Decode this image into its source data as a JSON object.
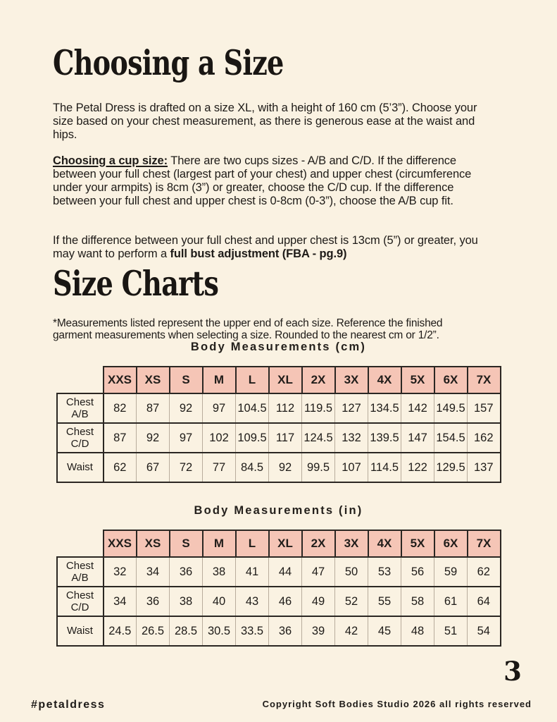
{
  "page": {
    "background_color": "#faf2e2",
    "accent_pink": "#f5c5b6",
    "border_color": "#2b2723",
    "page_number": "3"
  },
  "headings": {
    "main": "Choosing a Size",
    "charts": "Size Charts"
  },
  "intro_paragraph": "The Petal Dress is drafted on a size XL, with a height of 160 cm (5’3”). Choose your size based on your chest measurement, as there is generous ease at the waist and hips.",
  "cup_paragraph": {
    "label": "Choosing a cup size:",
    "text": " There are two cups sizes - A/B and C/D. If the difference between your full chest (largest part of your chest) and upper chest (circumference under your armpits) is 8cm (3”) or greater, choose the C/D cup. If the difference between your full chest and upper chest is 0-8cm (0-3”), choose the A/B cup fit."
  },
  "fba_paragraph": {
    "text": "If the difference between your full chest and upper chest is 13cm (5”) or greater, you may want to perform a ",
    "bold": "full bust adjustment (FBA - pg.9)"
  },
  "charts_note": "*Measurements listed represent the upper end of each size. Reference the finished garment measurements when selecting a size. Rounded to the nearest cm or 1/2”.",
  "size_charts": {
    "sizes": [
      "XXS",
      "XS",
      "S",
      "M",
      "L",
      "XL",
      "2X",
      "3X",
      "4X",
      "5X",
      "6X",
      "7X"
    ],
    "cm": {
      "title": "Body Measurements (cm)",
      "rows": [
        {
          "label": "Chest A/B",
          "values": [
            "82",
            "87",
            "92",
            "97",
            "104.5",
            "112",
            "119.5",
            "127",
            "134.5",
            "142",
            "149.5",
            "157"
          ]
        },
        {
          "label": "Chest C/D",
          "values": [
            "87",
            "92",
            "97",
            "102",
            "109.5",
            "117",
            "124.5",
            "132",
            "139.5",
            "147",
            "154.5",
            "162"
          ]
        },
        {
          "label": "Waist",
          "values": [
            "62",
            "67",
            "72",
            "77",
            "84.5",
            "92",
            "99.5",
            "107",
            "114.5",
            "122",
            "129.5",
            "137"
          ]
        }
      ]
    },
    "in": {
      "title": "Body Measurements (in)",
      "rows": [
        {
          "label": "Chest A/B",
          "values": [
            "32",
            "34",
            "36",
            "38",
            "41",
            "44",
            "47",
            "50",
            "53",
            "56",
            "59",
            "62"
          ]
        },
        {
          "label": "Chest C/D",
          "values": [
            "34",
            "36",
            "38",
            "40",
            "43",
            "46",
            "49",
            "52",
            "55",
            "58",
            "61",
            "64"
          ]
        },
        {
          "label": "Waist",
          "values": [
            "24.5",
            "26.5",
            "28.5",
            "30.5",
            "33.5",
            "36",
            "39",
            "42",
            "45",
            "48",
            "51",
            "54"
          ]
        }
      ]
    }
  },
  "footer": {
    "hashtag": "#petaldress",
    "copyright": "Copyright Soft Bodies Studio 2026 all rights reserved"
  }
}
